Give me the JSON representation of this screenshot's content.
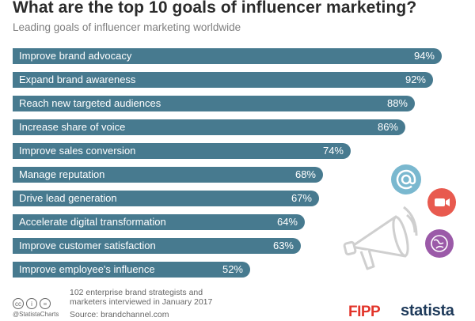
{
  "header": {
    "title": "What are the top 10 goals of influencer marketing?",
    "subtitle": "Leading goals of influencer marketing worldwide"
  },
  "chart_data": {
    "type": "bar",
    "orientation": "horizontal",
    "title": "What are the top 10 goals of influencer marketing?",
    "subtitle": "Leading goals of influencer marketing worldwide",
    "categories": [
      "Improve brand advocacy",
      "Expand brand awareness",
      "Reach new targeted audiences",
      "Increase share of voice",
      "Improve sales conversion",
      "Manage reputation",
      "Drive lead generation",
      "Accelerate digital transformation",
      "Improve customer satisfaction",
      "Improve employee's influence"
    ],
    "values": [
      94,
      92,
      88,
      86,
      74,
      68,
      67,
      64,
      63,
      52
    ],
    "value_labels": [
      "94%",
      "92%",
      "88%",
      "86%",
      "74%",
      "68%",
      "67%",
      "64%",
      "63%",
      "52%"
    ],
    "unit": "%",
    "xlim": [
      0,
      100
    ],
    "grid": false,
    "legend": "none",
    "bar_color": "#477a8f"
  },
  "footer": {
    "note": "102 enterprise brand strategists and marketers interviewed in January 2017",
    "source": "Source: brandchannel.com",
    "handle": "@StatistaCharts",
    "cc_icons": [
      "cc",
      "i",
      "="
    ]
  },
  "logos": {
    "fipp": "FIPP",
    "statista": "statista"
  },
  "decor": {
    "icons": [
      "at-sign-icon",
      "video-camera-icon",
      "globe-icon",
      "megaphone-icon"
    ],
    "colors": {
      "at": "#7ab8cf",
      "video": "#e85a4f",
      "globe": "#9b5aa8",
      "megaphone": "#cccccc"
    }
  }
}
